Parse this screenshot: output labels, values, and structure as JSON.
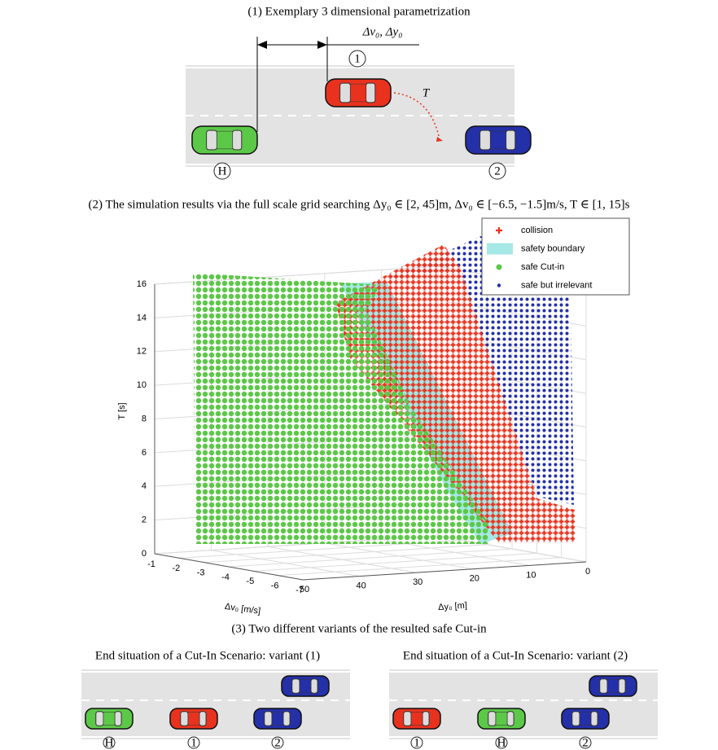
{
  "section1": {
    "title": "(1) Exemplary 3 dimensional parametrization",
    "dimension_label": "Δv₀, Δy₀",
    "time_label": "T",
    "vehicle_labels": [
      "1",
      "H",
      "2"
    ]
  },
  "section2": {
    "title": "(2) The simulation results via the full scale grid searching Δy₀ ∈ [2, 45]m, Δv₀ ∈ [−6.5, −1.5]m/s, T ∈ [1, 15]s",
    "chart": {
      "type": "scatter3d",
      "legend": [
        "collision",
        "safety boundary",
        "safe Cut-in",
        "safe but irrelevant"
      ],
      "colors": [
        "#e8321e",
        "#a6e8e6",
        "#5cc848",
        "#2430a8"
      ],
      "z_label": "T [s]",
      "x_label": "Δv₀ [m/s]",
      "y_label": "Δy₀ [m]",
      "zlim": [
        0,
        16
      ],
      "zticks": [
        0,
        2,
        4,
        6,
        8,
        10,
        12,
        14,
        16
      ],
      "xlim": [
        -7,
        -1
      ],
      "xticks": [
        -1,
        -2,
        -3,
        -4,
        -5,
        -6,
        -7
      ],
      "ylim": [
        0,
        50
      ],
      "yticks": [
        50,
        40,
        30,
        20,
        10,
        0
      ]
    }
  },
  "section3": {
    "title": "(3) Two different variants of the resulted safe Cut-in",
    "variants": [
      {
        "title": "End situation of a Cut-In Scenario: variant (1)",
        "labels": [
          "H",
          "1",
          "2"
        ]
      },
      {
        "title": "End situation of a Cut-In Scenario: variant (2)",
        "labels": [
          "1",
          "H",
          "2"
        ]
      }
    ]
  }
}
